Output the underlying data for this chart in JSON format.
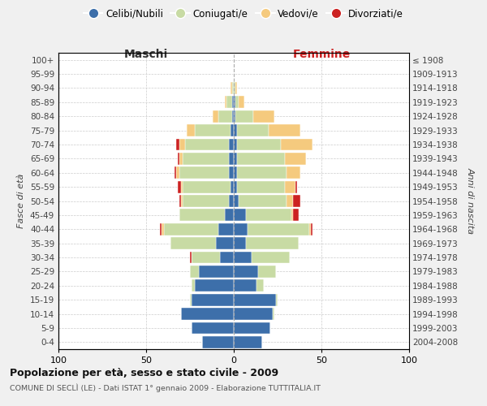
{
  "age_groups": [
    "0-4",
    "5-9",
    "10-14",
    "15-19",
    "20-24",
    "25-29",
    "30-34",
    "35-39",
    "40-44",
    "45-49",
    "50-54",
    "55-59",
    "60-64",
    "65-69",
    "70-74",
    "75-79",
    "80-84",
    "85-89",
    "90-94",
    "95-99",
    "100+"
  ],
  "birth_years": [
    "2004-2008",
    "1999-2003",
    "1994-1998",
    "1989-1993",
    "1984-1988",
    "1979-1983",
    "1974-1978",
    "1969-1973",
    "1964-1968",
    "1959-1963",
    "1954-1958",
    "1949-1953",
    "1944-1948",
    "1939-1943",
    "1934-1938",
    "1929-1933",
    "1924-1928",
    "1919-1923",
    "1914-1918",
    "1909-1913",
    "≤ 1908"
  ],
  "colors": {
    "celibi": "#3d6faa",
    "coniugati": "#c8dba4",
    "vedovi": "#f5ca7e",
    "divorziati": "#cc2222"
  },
  "maschi": {
    "celibi": [
      18,
      24,
      30,
      24,
      22,
      20,
      8,
      10,
      9,
      5,
      3,
      2,
      3,
      3,
      3,
      2,
      1,
      1,
      0,
      0,
      0
    ],
    "coniugati": [
      0,
      0,
      0,
      1,
      2,
      5,
      16,
      26,
      31,
      26,
      26,
      27,
      28,
      26,
      25,
      20,
      8,
      3,
      1,
      0,
      0
    ],
    "vedovi": [
      0,
      0,
      0,
      0,
      0,
      0,
      0,
      0,
      1,
      0,
      1,
      1,
      2,
      2,
      3,
      5,
      3,
      1,
      1,
      0,
      0
    ],
    "divorziati": [
      0,
      0,
      0,
      0,
      0,
      0,
      1,
      0,
      1,
      0,
      1,
      2,
      1,
      1,
      2,
      0,
      0,
      0,
      0,
      0,
      0
    ]
  },
  "femmine": {
    "celibi": [
      16,
      21,
      22,
      24,
      13,
      14,
      10,
      7,
      8,
      7,
      3,
      2,
      2,
      2,
      2,
      2,
      1,
      1,
      0,
      0,
      0
    ],
    "coniugati": [
      0,
      0,
      1,
      1,
      4,
      10,
      22,
      30,
      35,
      26,
      27,
      27,
      28,
      27,
      25,
      18,
      10,
      2,
      1,
      0,
      0
    ],
    "vedovi": [
      0,
      0,
      0,
      0,
      0,
      0,
      0,
      0,
      1,
      1,
      4,
      6,
      8,
      12,
      18,
      18,
      12,
      3,
      1,
      0,
      0
    ],
    "divorziati": [
      0,
      0,
      0,
      0,
      0,
      0,
      0,
      0,
      1,
      3,
      4,
      1,
      0,
      0,
      0,
      0,
      0,
      0,
      0,
      0,
      0
    ]
  },
  "xlim": 100,
  "title1": "Popolazione per età, sesso e stato civile - 2009",
  "title2": "COMUNE DI SECLÌ (LE) - Dati ISTAT 1° gennaio 2009 - Elaborazione TUTTITALIA.IT",
  "ylabel_left": "Fasce di età",
  "ylabel_right": "Anni di nascita",
  "legend_labels": [
    "Celibi/Nubili",
    "Coniugati/e",
    "Vedovi/e",
    "Divorziati/e"
  ],
  "bg_color": "#f0f0f0",
  "plot_bg": "#ffffff",
  "maschi_label_color": "#333333",
  "femmine_label_color": "#cc2222"
}
